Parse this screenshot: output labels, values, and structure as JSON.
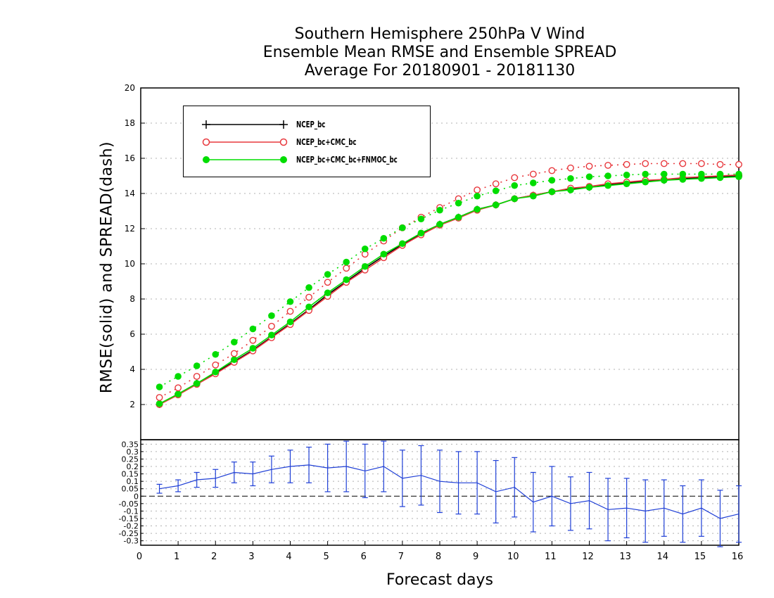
{
  "titles": {
    "line1": "Southern Hemisphere 250hPa V Wind",
    "line2": "Ensemble Mean RMSE and Ensemble SPREAD",
    "line3": "Average For 20180901 - 20181130"
  },
  "chart_data": [
    {
      "type": "line",
      "ylabel": "RMSE(solid) and SPREAD(dash)",
      "xlim": [
        0,
        16
      ],
      "ylim": [
        0,
        20
      ],
      "yticks": [
        2,
        4,
        6,
        8,
        10,
        12,
        14,
        16,
        18,
        20
      ],
      "grid": true,
      "legend_position": "top-left",
      "x": [
        0.5,
        1,
        1.5,
        2,
        2.5,
        3,
        3.5,
        4,
        4.5,
        5,
        5.5,
        6,
        6.5,
        7,
        7.5,
        8,
        8.5,
        9,
        9.5,
        10,
        10.5,
        11,
        11.5,
        12,
        12.5,
        13,
        13.5,
        14,
        14.5,
        15,
        15.5,
        16
      ],
      "series": [
        {
          "name": "NCEP_bc",
          "color": "#000000",
          "marker": "plus",
          "kind": "rmse",
          "values": [
            2.0,
            2.6,
            3.2,
            3.8,
            4.45,
            5.1,
            5.85,
            6.6,
            7.4,
            8.25,
            9.0,
            9.75,
            10.45,
            11.1,
            11.7,
            12.25,
            12.65,
            13.1,
            13.35,
            13.7,
            13.9,
            14.1,
            14.25,
            14.35,
            14.5,
            14.6,
            14.7,
            14.75,
            14.85,
            14.9,
            14.95,
            15.0
          ]
        },
        {
          "name": "NCEP_bc+CMC_bc",
          "color": "#e8383d",
          "marker": "open-circle",
          "kind": "rmse",
          "values": [
            2.0,
            2.55,
            3.15,
            3.75,
            4.4,
            5.05,
            5.8,
            6.55,
            7.35,
            8.15,
            8.95,
            9.65,
            10.35,
            11.05,
            11.65,
            12.2,
            12.6,
            13.05,
            13.35,
            13.7,
            13.9,
            14.1,
            14.3,
            14.4,
            14.55,
            14.65,
            14.75,
            14.8,
            14.9,
            14.95,
            15.0,
            15.05
          ]
        },
        {
          "name": "NCEP_bc+CMC_bc+FNMOC_bc",
          "color": "#00dd00",
          "marker": "filled-circle",
          "kind": "rmse",
          "values": [
            2.05,
            2.6,
            3.2,
            3.85,
            4.55,
            5.2,
            5.95,
            6.7,
            7.55,
            8.35,
            9.1,
            9.85,
            10.55,
            11.15,
            11.75,
            12.25,
            12.65,
            13.1,
            13.35,
            13.7,
            13.85,
            14.1,
            14.2,
            14.35,
            14.45,
            14.55,
            14.65,
            14.75,
            14.8,
            14.85,
            14.9,
            14.95
          ]
        },
        {
          "name": "NCEP_bc+CMC_bc spread",
          "color": "#e8383d",
          "marker": "open-circle",
          "kind": "spread",
          "values": [
            2.4,
            2.95,
            3.6,
            4.25,
            4.9,
            5.65,
            6.45,
            7.3,
            8.1,
            8.95,
            9.75,
            10.55,
            11.3,
            12.05,
            12.65,
            13.2,
            13.7,
            14.2,
            14.55,
            14.9,
            15.1,
            15.3,
            15.45,
            15.55,
            15.6,
            15.65,
            15.7,
            15.7,
            15.7,
            15.7,
            15.65,
            15.65
          ]
        },
        {
          "name": "NCEP_bc+CMC_bc+FNMOC_bc spread",
          "color": "#00dd00",
          "marker": "filled-circle",
          "kind": "spread",
          "values": [
            3.0,
            3.6,
            4.2,
            4.85,
            5.55,
            6.3,
            7.05,
            7.85,
            8.65,
            9.4,
            10.1,
            10.85,
            11.45,
            12.05,
            12.55,
            13.05,
            13.45,
            13.85,
            14.15,
            14.45,
            14.6,
            14.75,
            14.85,
            14.95,
            15.0,
            15.05,
            15.1,
            15.1,
            15.1,
            15.1,
            15.1,
            15.1
          ]
        }
      ]
    },
    {
      "type": "line",
      "xlabel": "Forecast days",
      "xlim": [
        0,
        16
      ],
      "ylim": [
        -0.33,
        0.38
      ],
      "xticks": [
        0,
        1,
        2,
        3,
        4,
        5,
        6,
        7,
        8,
        9,
        10,
        11,
        12,
        13,
        14,
        15,
        16
      ],
      "yticks": [
        "-0.3",
        "-0.25",
        "-0.2",
        "-0.15",
        "-0.1",
        "-0.05",
        "0",
        "0.05",
        "0.1",
        "0.15",
        "0.2",
        "0.25",
        "0.3",
        "0.35"
      ],
      "grid": true,
      "series": [
        {
          "name": "RMSE difference",
          "color": "#1f3fd6",
          "x": [
            0.5,
            1,
            1.5,
            2,
            2.5,
            3,
            3.5,
            4,
            4.5,
            5,
            5.5,
            6,
            6.5,
            7,
            7.5,
            8,
            8.5,
            9,
            9.5,
            10,
            10.5,
            11,
            11.5,
            12,
            12.5,
            13,
            13.5,
            14,
            14.5,
            15,
            15.5,
            16
          ],
          "values": [
            0.05,
            0.07,
            0.11,
            0.12,
            0.16,
            0.15,
            0.18,
            0.2,
            0.21,
            0.19,
            0.2,
            0.17,
            0.2,
            0.12,
            0.14,
            0.1,
            0.09,
            0.09,
            0.03,
            0.06,
            -0.04,
            0.0,
            -0.05,
            -0.03,
            -0.09,
            -0.08,
            -0.1,
            -0.08,
            -0.12,
            -0.08,
            -0.15,
            -0.12
          ],
          "error": [
            0.03,
            0.04,
            0.05,
            0.06,
            0.07,
            0.08,
            0.09,
            0.11,
            0.12,
            0.16,
            0.17,
            0.18,
            0.17,
            0.19,
            0.2,
            0.21,
            0.21,
            0.21,
            0.21,
            0.2,
            0.2,
            0.2,
            0.18,
            0.19,
            0.21,
            0.2,
            0.21,
            0.19,
            0.19,
            0.19,
            0.19,
            0.19
          ]
        }
      ]
    }
  ]
}
